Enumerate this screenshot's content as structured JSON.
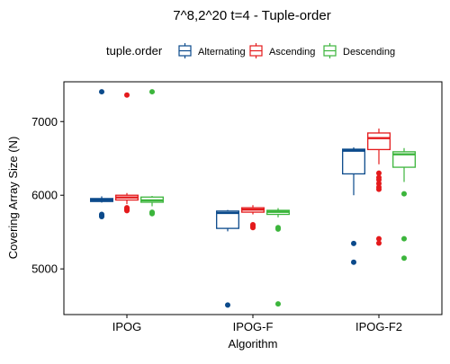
{
  "chart_data": {
    "type": "boxplot",
    "title": "7^8,2^20 t=4 - Tuple-order",
    "xlabel": "Algorithm",
    "ylabel": "Covering Array Size (N)",
    "ylim": [
      4380,
      7540
    ],
    "yticks": [
      5000,
      6000,
      7000
    ],
    "grid": false,
    "legend": {
      "title": "tuple.order",
      "position": "top",
      "entries": [
        "Alternating",
        "Ascending",
        "Descending"
      ]
    },
    "colors": {
      "Alternating": "#0b4a8b",
      "Ascending": "#e41a1c",
      "Descending": "#3cb53c"
    },
    "categories": [
      "IPOG",
      "IPOG-F",
      "IPOG-F2"
    ],
    "series": [
      {
        "name": "Alternating",
        "boxes": [
          {
            "category": "IPOG",
            "whisker_low": 5900,
            "q1": 5915,
            "median": 5935,
            "q3": 5955,
            "whisker_high": 5985,
            "outliers": [
              5710,
              5720,
              5730,
              5740,
              7405
            ]
          },
          {
            "category": "IPOG-F",
            "whisker_low": 5510,
            "q1": 5550,
            "median": 5760,
            "q3": 5785,
            "whisker_high": 5800,
            "outliers": [
              4510
            ]
          },
          {
            "category": "IPOG-F2",
            "whisker_low": 6000,
            "q1": 6290,
            "median": 6605,
            "q3": 6625,
            "whisker_high": 6650,
            "outliers": [
              5345,
              5090
            ]
          }
        ]
      },
      {
        "name": "Ascending",
        "boxes": [
          {
            "category": "IPOG",
            "whisker_low": 5880,
            "q1": 5935,
            "median": 5970,
            "q3": 6000,
            "whisker_high": 6030,
            "outliers": [
              5790,
              5800,
              5810,
              5820,
              5830,
              7360
            ]
          },
          {
            "category": "IPOG-F",
            "whisker_low": 5740,
            "q1": 5770,
            "median": 5805,
            "q3": 5830,
            "whisker_high": 5865,
            "outliers": [
              5560,
              5580,
              5600
            ]
          },
          {
            "category": "IPOG-F2",
            "whisker_low": 6420,
            "q1": 6620,
            "median": 6775,
            "q3": 6845,
            "whisker_high": 6905,
            "outliers": [
              6300,
              6240,
              6210,
              6160,
              6110,
              6080,
              5410,
              5350
            ]
          }
        ]
      },
      {
        "name": "Descending",
        "boxes": [
          {
            "category": "IPOG",
            "whisker_low": 5850,
            "q1": 5905,
            "median": 5930,
            "q3": 5975,
            "whisker_high": 5990,
            "outliers": [
              5750,
              5760,
              5770,
              7405
            ]
          },
          {
            "category": "IPOG-F",
            "whisker_low": 5700,
            "q1": 5740,
            "median": 5775,
            "q3": 5795,
            "whisker_high": 5825,
            "outliers": [
              5540,
              5560,
              4525
            ]
          },
          {
            "category": "IPOG-F2",
            "whisker_low": 6180,
            "q1": 6380,
            "median": 6555,
            "q3": 6590,
            "whisker_high": 6640,
            "outliers": [
              6020,
              5410,
              5145
            ]
          }
        ]
      }
    ]
  }
}
